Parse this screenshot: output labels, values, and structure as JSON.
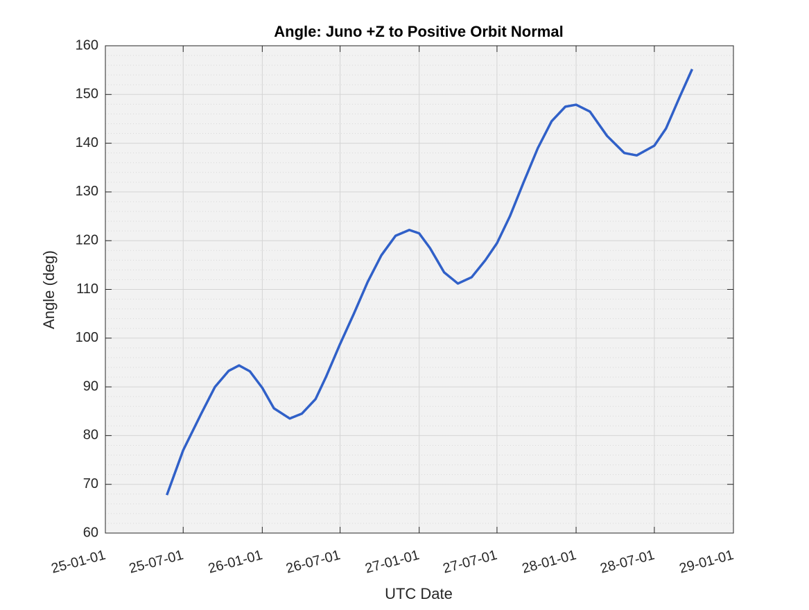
{
  "chart_data": {
    "type": "line",
    "title": "Angle: Juno +Z to Positive Orbit Normal",
    "x_label": "UTC Date",
    "y_label": "Angle (deg)",
    "x": [
      "25-05-24",
      "25-07-01",
      "25-08-12",
      "25-09-13",
      "25-10-15",
      "25-11-08",
      "25-12-03",
      "26-01-01",
      "26-01-28",
      "26-03-06",
      "26-04-03",
      "26-05-05",
      "26-05-29",
      "26-07-01",
      "26-08-02",
      "26-09-03",
      "26-10-05",
      "26-11-07",
      "26-12-09",
      "27-01-01",
      "27-01-26",
      "27-02-28",
      "27-04-01",
      "27-05-03",
      "27-06-04",
      "27-07-01",
      "27-07-31",
      "27-09-01",
      "27-10-04",
      "27-11-05",
      "27-12-07",
      "28-01-01",
      "28-02-02",
      "28-03-13",
      "28-04-22",
      "28-05-21",
      "28-07-01",
      "28-07-28",
      "28-08-29",
      "28-09-27"
    ],
    "series": [
      {
        "name": "Angle",
        "color": "#3060c8",
        "values": [
          67.8,
          77,
          84.5,
          90,
          93.3,
          94.4,
          93.2,
          89.8,
          85.6,
          83.5,
          84.5,
          87.5,
          92,
          98.8,
          105,
          111.5,
          117,
          121,
          122.2,
          121.5,
          118.5,
          113.5,
          111.2,
          112.5,
          116,
          119.5,
          125,
          132,
          139,
          144.5,
          147.5,
          147.9,
          146.5,
          141.5,
          138,
          137.5,
          139.5,
          143,
          149.5,
          155.2
        ]
      }
    ],
    "xlim": [
      "25-01-01",
      "29-01-01"
    ],
    "xticks": [
      "25-01-01",
      "25-07-01",
      "26-01-01",
      "26-07-01",
      "27-01-01",
      "27-07-01",
      "28-01-01",
      "28-07-01",
      "29-01-01"
    ],
    "ylim": [
      60,
      160
    ],
    "yticks": [
      60,
      70,
      80,
      90,
      100,
      110,
      120,
      130,
      140,
      150,
      160
    ],
    "grid": true
  }
}
